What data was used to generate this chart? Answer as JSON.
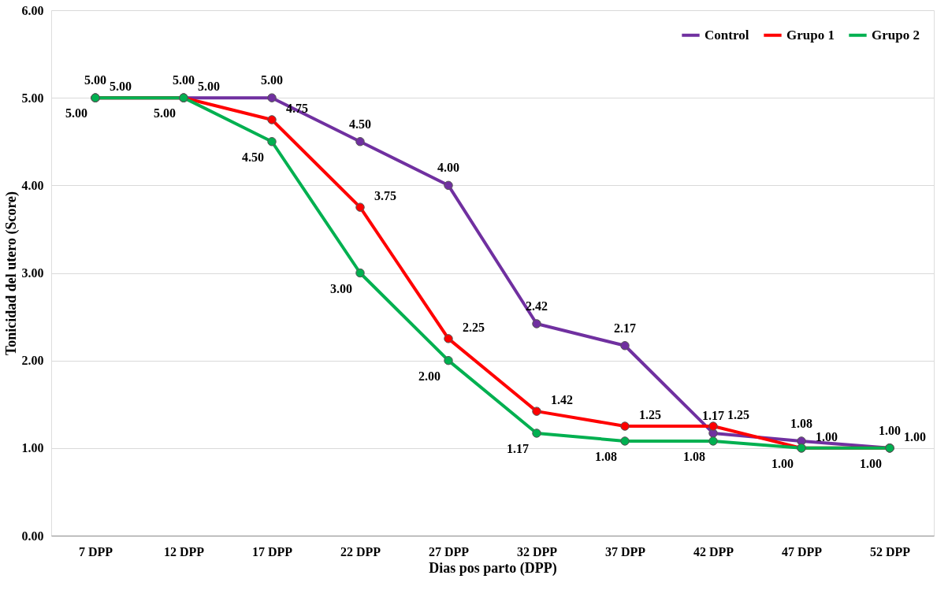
{
  "chart_data": {
    "type": "line",
    "xlabel": "Dias pos parto (DPP)",
    "ylabel": "Tonicidad del utero (Score)",
    "categories": [
      "7 DPP",
      "12 DPP",
      "17 DPP",
      "22 DPP",
      "27 DPP",
      "32 DPP",
      "37 DPP",
      "42 DPP",
      "47 DPP",
      "52 DPP"
    ],
    "series": [
      {
        "name": "Control",
        "color": "#7030a0",
        "values": [
          5.0,
          5.0,
          5.0,
          4.5,
          4.0,
          2.42,
          2.17,
          1.17,
          1.08,
          1.0
        ],
        "value_labels": [
          "5.00",
          "5.00",
          "5.00",
          "4.50",
          "4.00",
          "2.42",
          "2.17",
          "1.17",
          "1.08",
          "1.00"
        ]
      },
      {
        "name": "Grupo 1",
        "color": "#ff0000",
        "values": [
          5.0,
          5.0,
          4.75,
          3.75,
          2.25,
          1.42,
          1.25,
          1.25,
          1.0,
          1.0
        ],
        "value_labels": [
          "5.00",
          "5.00",
          "4.75",
          "3.75",
          "2.25",
          "1.42",
          "1.25",
          "1.25",
          "1.00",
          "1.00"
        ]
      },
      {
        "name": "Grupo 2",
        "color": "#00b050",
        "values": [
          5.0,
          5.0,
          4.5,
          3.0,
          2.0,
          1.17,
          1.08,
          1.08,
          1.0,
          1.0
        ],
        "value_labels": [
          "5.00",
          "5.00",
          "4.50",
          "3.00",
          "2.00",
          "1.17",
          "1.08",
          "1.08",
          "1.00",
          "1.00"
        ]
      }
    ],
    "ylim": [
      0,
      6
    ],
    "yticks": [
      {
        "value": 0,
        "label": "0.00"
      },
      {
        "value": 1,
        "label": "1.00"
      },
      {
        "value": 2,
        "label": "2.00"
      },
      {
        "value": 3,
        "label": "3.00"
      },
      {
        "value": 4,
        "label": "4.00"
      },
      {
        "value": 5,
        "label": "5.00"
      },
      {
        "value": 6,
        "label": "6.00"
      }
    ],
    "grid": "y",
    "legend": "top right",
    "marker": "circle",
    "line_style": "solid"
  }
}
